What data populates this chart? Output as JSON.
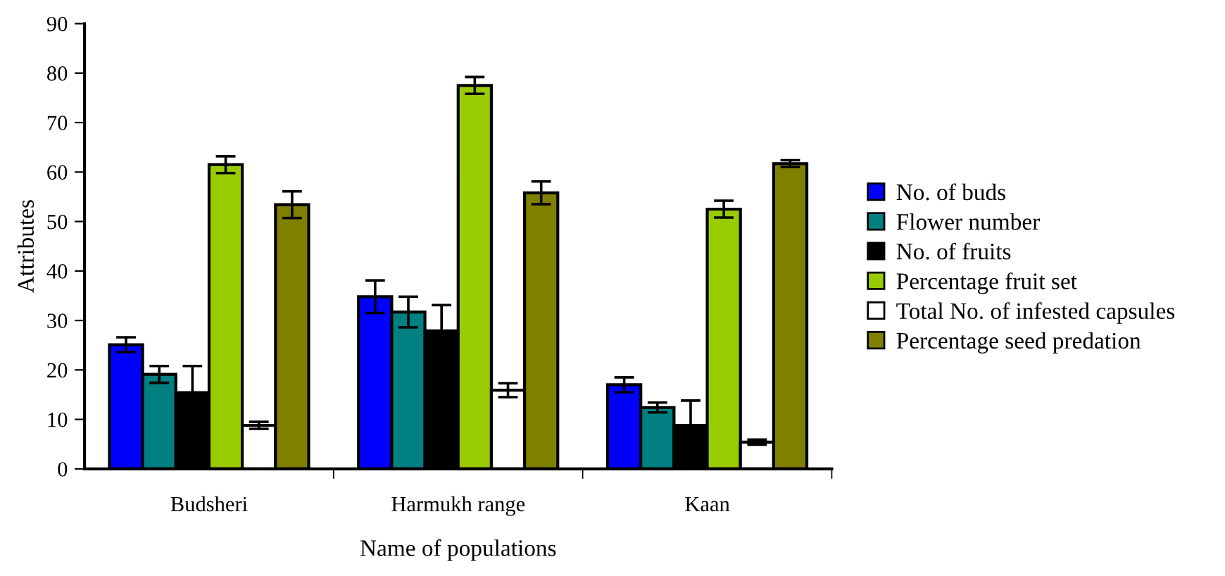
{
  "chart_data": {
    "type": "bar",
    "xlabel": "Name of populations",
    "ylabel": "Attributes",
    "categories": [
      "Budsheri",
      "Harmukh range",
      "Kaan"
    ],
    "ylim": [
      0,
      90
    ],
    "yticks": [
      0,
      10,
      20,
      30,
      40,
      50,
      60,
      70,
      80,
      90
    ],
    "grid": false,
    "legend": "right",
    "series": [
      {
        "name": "No. of buds",
        "color": "#0000ff",
        "values": [
          25.1,
          34.8,
          17.0
        ],
        "errors": [
          1.5,
          3.3,
          1.5
        ]
      },
      {
        "name": "Flower number",
        "color": "#008080",
        "values": [
          19.1,
          31.7,
          12.4
        ],
        "errors": [
          1.7,
          3.1,
          1.0
        ]
      },
      {
        "name": "No. of fruits",
        "color": "#000000",
        "values": [
          15.4,
          27.9,
          8.8
        ],
        "errors": [
          5.4,
          5.2,
          5.0
        ]
      },
      {
        "name": "Percentage fruit set",
        "color": "#99cc00",
        "values": [
          61.5,
          77.5,
          52.5
        ],
        "errors": [
          1.7,
          1.7,
          1.7
        ]
      },
      {
        "name": "Total No. of infested capsules",
        "color": "#ffffff",
        "values": [
          8.8,
          15.9,
          5.4
        ],
        "errors": [
          0.7,
          1.4,
          0.5
        ]
      },
      {
        "name": "Percentage seed predation",
        "color": "#808000",
        "values": [
          53.4,
          55.8,
          61.7
        ],
        "errors": [
          2.7,
          2.3,
          0.7
        ]
      }
    ]
  }
}
